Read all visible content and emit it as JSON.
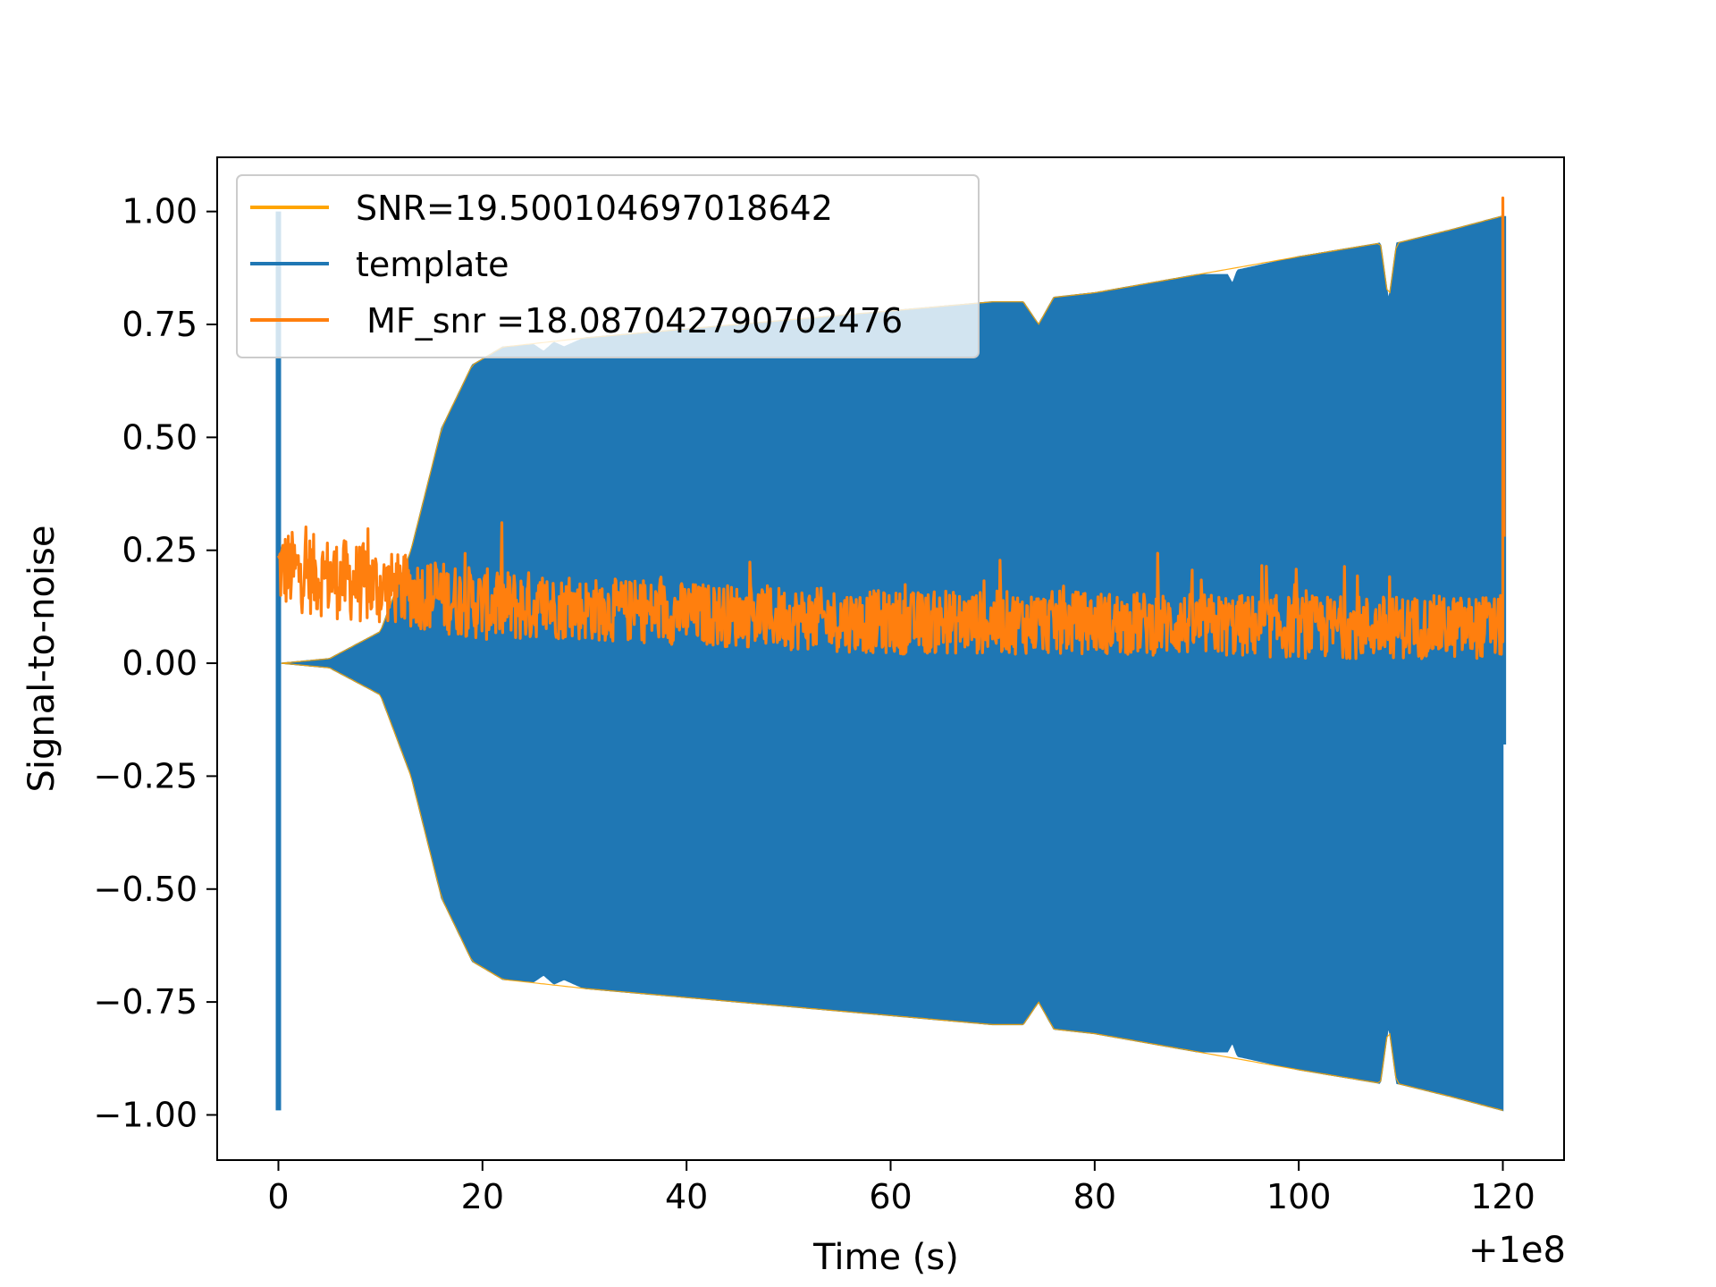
{
  "chart_data": {
    "type": "line",
    "title": "",
    "xlabel": "Time (s)",
    "ylabel": "Signal-to-noise",
    "x_offset_label": "+1e8",
    "xlim": [
      -6,
      126
    ],
    "ylim": [
      -1.1,
      1.12
    ],
    "xticks": [
      0,
      20,
      40,
      60,
      80,
      100,
      120
    ],
    "xtick_labels": [
      "0",
      "20",
      "40",
      "60",
      "80",
      "100",
      "120"
    ],
    "yticks": [
      1.0,
      0.75,
      0.5,
      0.25,
      0.0,
      -0.25,
      -0.5,
      -0.75,
      -1.0
    ],
    "ytick_labels": [
      "1.00",
      "0.75",
      "0.50",
      "0.25",
      "0.00",
      "−0.25",
      "−0.50",
      "−0.75",
      "−1.00"
    ],
    "grid": false,
    "legend_position": "upper-left",
    "series": [
      {
        "name": "SNR=19.500104697018642",
        "color": "#ffa500",
        "style": "envelope-outline",
        "x": [
          0.3,
          5,
          10,
          13,
          16,
          19,
          22,
          30,
          40,
          50,
          60,
          70,
          73,
          74.5,
          76,
          80,
          90,
          100,
          108,
          108.8,
          109.6,
          115,
          120
        ],
        "upper": [
          0.0,
          0.01,
          0.07,
          0.25,
          0.52,
          0.66,
          0.7,
          0.72,
          0.74,
          0.76,
          0.78,
          0.8,
          0.8,
          0.75,
          0.81,
          0.82,
          0.86,
          0.9,
          0.93,
          0.8,
          0.93,
          0.96,
          0.99
        ],
        "lower": [
          0.0,
          -0.01,
          -0.07,
          -0.25,
          -0.52,
          -0.66,
          -0.7,
          -0.72,
          -0.74,
          -0.76,
          -0.78,
          -0.8,
          -0.8,
          -0.75,
          -0.81,
          -0.82,
          -0.86,
          -0.9,
          -0.93,
          -0.8,
          -0.93,
          -0.96,
          -0.99
        ]
      },
      {
        "name": "template",
        "color": "#1f77b4",
        "style": "filled-oscillation",
        "x": [
          0.3,
          5,
          10,
          13,
          16,
          19,
          22,
          25,
          26,
          27,
          28,
          30,
          40,
          50,
          60,
          70,
          73,
          74.5,
          76,
          80,
          90,
          93,
          93.5,
          94,
          100,
          108,
          108.8,
          109.6,
          115,
          120
        ],
        "upper": [
          0.0,
          0.01,
          0.07,
          0.25,
          0.52,
          0.66,
          0.7,
          0.705,
          0.69,
          0.71,
          0.7,
          0.72,
          0.74,
          0.76,
          0.78,
          0.8,
          0.8,
          0.75,
          0.81,
          0.82,
          0.86,
          0.86,
          0.84,
          0.87,
          0.9,
          0.93,
          0.8,
          0.93,
          0.96,
          0.99
        ],
        "lower": [
          0.0,
          -0.01,
          -0.07,
          -0.25,
          -0.52,
          -0.66,
          -0.7,
          -0.705,
          -0.69,
          -0.71,
          -0.7,
          -0.72,
          -0.74,
          -0.76,
          -0.78,
          -0.8,
          -0.8,
          -0.75,
          -0.81,
          -0.82,
          -0.86,
          -0.86,
          -0.84,
          -0.87,
          -0.9,
          -0.93,
          -0.8,
          -0.93,
          -0.96,
          -0.99
        ],
        "spike": {
          "x": 0,
          "min": -0.99,
          "max": 1.0
        },
        "tail": {
          "x": 120.1,
          "min": -0.18,
          "max": 0.99
        }
      },
      {
        "name": " MF_snr =18.087042790702476",
        "color": "#ff7f0e",
        "style": "noisy-line",
        "x_range": [
          0,
          120
        ],
        "baseline": [
          {
            "x": 0,
            "y": 0.21
          },
          {
            "x": 10,
            "y": 0.17
          },
          {
            "x": 20,
            "y": 0.13
          },
          {
            "x": 40,
            "y": 0.11
          },
          {
            "x": 60,
            "y": 0.09
          },
          {
            "x": 80,
            "y": 0.09
          },
          {
            "x": 100,
            "y": 0.08
          },
          {
            "x": 120,
            "y": 0.08
          }
        ],
        "final_peak": {
          "x": 120,
          "y": 1.03
        }
      }
    ]
  }
}
